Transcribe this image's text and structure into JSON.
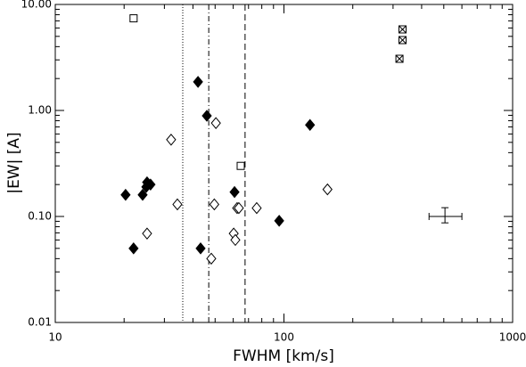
{
  "chart_data": {
    "type": "scatter",
    "xlabel": "FWHM [km/s]",
    "ylabel": "|EW| [A]",
    "xscale": "log",
    "yscale": "log",
    "xlim": [
      10,
      1000
    ],
    "ylim": [
      0.01,
      10
    ],
    "xticks": [
      10,
      100,
      1000
    ],
    "yticks": [
      {
        "value": 0.01,
        "label": "0.01"
      },
      {
        "value": 0.1,
        "label": "0.10"
      },
      {
        "value": 1,
        "label": "1.00"
      },
      {
        "value": 10,
        "label": "10.00"
      }
    ],
    "series": [
      {
        "marker": "filled-diamond",
        "color": "#000000",
        "x": [
          20.3,
          22.0,
          24.1,
          25.2,
          25.0,
          26.1,
          42.1,
          46.0,
          43.2,
          60.8,
          95.3,
          130
        ],
        "values": [
          0.16,
          0.05,
          0.16,
          0.21,
          0.19,
          0.2,
          1.86,
          0.89,
          0.05,
          0.17,
          0.091,
          0.73
        ]
      },
      {
        "marker": "open-diamond",
        "color": "#000000",
        "x": [
          32.1,
          34.2,
          25.2,
          50.4,
          49.6,
          62.4,
          63.5,
          76.0,
          60.3,
          61.3,
          48.1,
          155
        ],
        "values": [
          0.53,
          0.13,
          0.069,
          0.76,
          0.13,
          0.12,
          0.12,
          0.12,
          0.069,
          0.06,
          0.04,
          0.18
        ]
      },
      {
        "marker": "open-square",
        "color": "#000000",
        "x": [
          22.0,
          64.7
        ],
        "values": [
          7.4,
          0.3
        ]
      },
      {
        "marker": "crossed-square",
        "color": "#000000",
        "x": [
          320,
          330,
          330
        ],
        "values": [
          3.07,
          5.82,
          4.61
        ]
      }
    ],
    "vlines": [
      {
        "x": 36.1,
        "style": "dotted"
      },
      {
        "x": 46.9,
        "style": "dashdot"
      },
      {
        "x": 67.6,
        "style": "dashed"
      }
    ],
    "error_bar": {
      "x": 506,
      "y": 0.1,
      "xlow": 431,
      "xhigh": 600,
      "ylow": 0.087,
      "yhigh": 0.121
    }
  }
}
